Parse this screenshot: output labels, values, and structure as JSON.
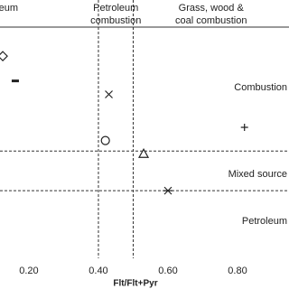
{
  "chart_data": {
    "type": "scatter",
    "xlabel": "Flt/Flt+Pyr",
    "xlim": [
      0.117,
      0.948
    ],
    "ylim": [
      -0.07,
      0.82
    ],
    "xticks": [
      {
        "value": 0.2,
        "label": "0.20"
      },
      {
        "value": 0.4,
        "label": "0.40"
      },
      {
        "value": 0.6,
        "label": "0.60"
      },
      {
        "value": 0.8,
        "label": "0.80"
      }
    ],
    "x_thresholds": [
      0.4,
      0.5
    ],
    "y_thresholds": [
      0.35,
      0.2
    ],
    "x_regions": [
      {
        "lines": [
          "Petroleum"
        ],
        "range": [
          0.0,
          0.4
        ]
      },
      {
        "lines": [
          "Petroleum",
          "combustion"
        ],
        "range": [
          0.4,
          0.5
        ]
      },
      {
        "lines": [
          "Grass, wood &",
          "coal combustion"
        ],
        "range": [
          0.5,
          0.948
        ]
      }
    ],
    "y_regions": [
      "Combustion",
      "Mixed source",
      "Petroleum"
    ],
    "color": "#222222",
    "points": [
      {
        "marker": "diamond",
        "x": 0.125,
        "y": 0.71
      },
      {
        "marker": "dash",
        "x": 0.161,
        "y": 0.616
      },
      {
        "marker": "x",
        "x": 0.43,
        "y": 0.565
      },
      {
        "marker": "circle",
        "x": 0.42,
        "y": 0.39
      },
      {
        "marker": "plus",
        "x": 0.82,
        "y": 0.44
      },
      {
        "marker": "triangle",
        "x": 0.53,
        "y": 0.34
      },
      {
        "marker": "asterisk",
        "x": 0.6,
        "y": 0.2
      }
    ]
  }
}
